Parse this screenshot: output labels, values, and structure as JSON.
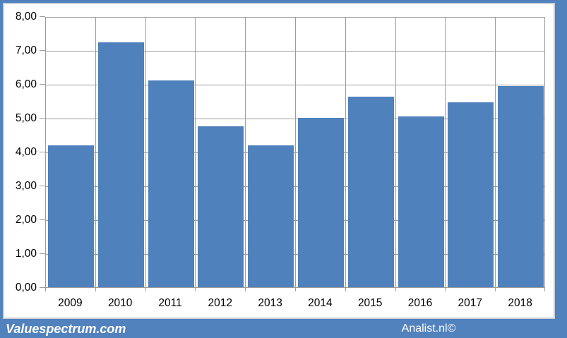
{
  "branding": {
    "left_logo": "Valuespectrum.com",
    "right_credit": "Analist.nl©"
  },
  "colors": {
    "bar": "#4f81bd",
    "frame": "#5282bd",
    "gridline": "#9c9c9c",
    "plot_background": "#ffffff",
    "bevel": "#c9cfd8",
    "axis_text": "#000000",
    "band_text": "#ffffff"
  },
  "chart_data": {
    "type": "bar",
    "title": "",
    "xlabel": "",
    "ylabel": "",
    "categories": [
      "2009",
      "2010",
      "2011",
      "2012",
      "2013",
      "2014",
      "2015",
      "2016",
      "2017",
      "2018"
    ],
    "values": [
      4.18,
      7.22,
      6.1,
      4.75,
      4.18,
      5.0,
      5.62,
      5.04,
      5.46,
      5.93
    ],
    "ylim": [
      0,
      8
    ],
    "ytick_step": 1,
    "ytick_labels": [
      "0,00",
      "1,00",
      "2,00",
      "3,00",
      "4,00",
      "5,00",
      "6,00",
      "7,00",
      "8,00"
    ],
    "grid": true,
    "vertical_gridlines": true,
    "legend_position": "none",
    "decimal_separator": ","
  }
}
